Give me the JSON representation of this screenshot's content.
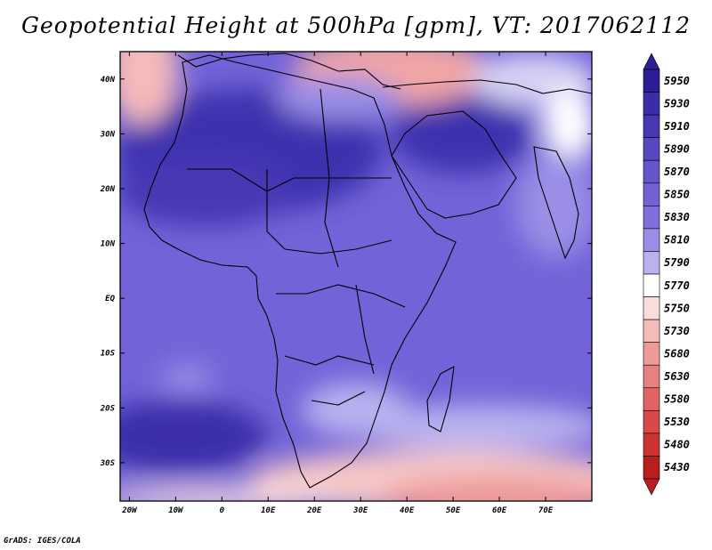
{
  "title": "Geopotential Height at 500hPa [gpm], VT: 2017062112",
  "credit": "GrADS: IGES/COLA",
  "map": {
    "lat_labels": [
      "40N",
      "30N",
      "20N",
      "10N",
      "EQ",
      "10S",
      "20S",
      "30S"
    ],
    "lat_values": [
      40,
      30,
      20,
      10,
      0,
      -10,
      -20,
      -30
    ],
    "lon_labels": [
      "20W",
      "10W",
      "0",
      "10E",
      "20E",
      "30E",
      "40E",
      "50E",
      "60E",
      "70E"
    ],
    "lon_values": [
      -20,
      -10,
      0,
      10,
      20,
      30,
      40,
      50,
      60,
      70
    ],
    "extent": {
      "lon_min": -22,
      "lon_max": 80,
      "lat_min": -37,
      "lat_max": 45
    }
  },
  "colorbar": {
    "labels": [
      "5950",
      "5930",
      "5910",
      "5890",
      "5870",
      "5850",
      "5830",
      "5810",
      "5790",
      "5770",
      "5750",
      "5730",
      "5680",
      "5630",
      "5580",
      "5530",
      "5480",
      "5430"
    ],
    "colors": [
      "#2b1e96",
      "#3a2ea8",
      "#4638b4",
      "#5648c0",
      "#6555cc",
      "#7262d6",
      "#8070de",
      "#9a8ee6",
      "#b9b2ef",
      "#ffffff",
      "#fbdcdc",
      "#f5baba",
      "#ef9a9a",
      "#e88080",
      "#e06464",
      "#d84a4a",
      "#cc3232",
      "#b81e1e"
    ]
  }
}
